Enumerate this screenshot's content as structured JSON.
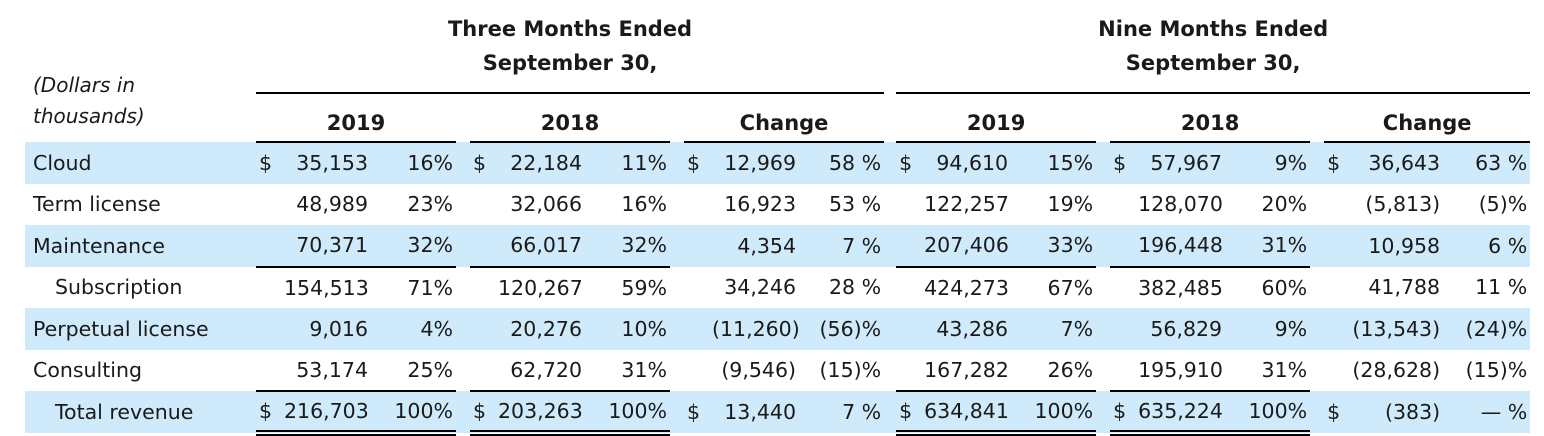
{
  "header": {
    "units_note": "(Dollars in thousands)",
    "groups": [
      {
        "title": "Three Months Ended September 30,",
        "columns": [
          "2019",
          "2018",
          "Change"
        ]
      },
      {
        "title": "Nine Months Ended September 30,",
        "columns": [
          "2019",
          "2018",
          "Change"
        ]
      }
    ]
  },
  "rows": [
    {
      "label": "Cloud",
      "indent": false,
      "shade": true,
      "rule": "none",
      "cells": [
        {
          "dollar": "$",
          "amount": "35,153",
          "pct": "16%"
        },
        {
          "dollar": "$",
          "amount": "22,184",
          "pct": "11%"
        },
        {
          "dollar": "$",
          "amount": "12,969",
          "pct": "58 %"
        },
        {
          "dollar": "$",
          "amount": "94,610",
          "pct": "15%"
        },
        {
          "dollar": "$",
          "amount": "57,967",
          "pct": "9%"
        },
        {
          "dollar": "$",
          "amount": "36,643",
          "pct": "63 %"
        }
      ]
    },
    {
      "label": "Term license",
      "indent": false,
      "shade": false,
      "rule": "none",
      "cells": [
        {
          "amount": "48,989",
          "pct": "23%"
        },
        {
          "amount": "32,066",
          "pct": "16%"
        },
        {
          "amount": "16,923",
          "pct": "53 %"
        },
        {
          "amount": "122,257",
          "pct": "19%"
        },
        {
          "amount": "128,070",
          "pct": "20%"
        },
        {
          "amount": "(5,813)",
          "pct": "(5)%"
        }
      ]
    },
    {
      "label": "Maintenance",
      "indent": false,
      "shade": true,
      "rule": "single",
      "cells": [
        {
          "amount": "70,371",
          "pct": "32%"
        },
        {
          "amount": "66,017",
          "pct": "32%"
        },
        {
          "amount": "4,354",
          "pct": "7 %"
        },
        {
          "amount": "207,406",
          "pct": "33%"
        },
        {
          "amount": "196,448",
          "pct": "31%"
        },
        {
          "amount": "10,958",
          "pct": "6 %"
        }
      ]
    },
    {
      "label": "Subscription",
      "indent": true,
      "shade": false,
      "rule": "none",
      "cells": [
        {
          "amount": "154,513",
          "pct": "71%"
        },
        {
          "amount": "120,267",
          "pct": "59%"
        },
        {
          "amount": "34,246",
          "pct": "28 %"
        },
        {
          "amount": "424,273",
          "pct": "67%"
        },
        {
          "amount": "382,485",
          "pct": "60%"
        },
        {
          "amount": "41,788",
          "pct": "11 %"
        }
      ]
    },
    {
      "label": "Perpetual license",
      "indent": false,
      "shade": true,
      "rule": "none",
      "cells": [
        {
          "amount": "9,016",
          "pct": "4%"
        },
        {
          "amount": "20,276",
          "pct": "10%"
        },
        {
          "amount": "(11,260)",
          "pct": "(56)%"
        },
        {
          "amount": "43,286",
          "pct": "7%"
        },
        {
          "amount": "56,829",
          "pct": "9%"
        },
        {
          "amount": "(13,543)",
          "pct": "(24)%"
        }
      ]
    },
    {
      "label": "Consulting",
      "indent": false,
      "shade": false,
      "rule": "single",
      "cells": [
        {
          "amount": "53,174",
          "pct": "25%"
        },
        {
          "amount": "62,720",
          "pct": "31%"
        },
        {
          "amount": "(9,546)",
          "pct": "(15)%"
        },
        {
          "amount": "167,282",
          "pct": "26%"
        },
        {
          "amount": "195,910",
          "pct": "31%"
        },
        {
          "amount": "(28,628)",
          "pct": "(15)%"
        }
      ]
    },
    {
      "label": "Total revenue",
      "indent": true,
      "shade": true,
      "rule": "double",
      "cells": [
        {
          "dollar": "$",
          "amount": "216,703",
          "pct": "100%"
        },
        {
          "dollar": "$",
          "amount": "203,263",
          "pct": "100%"
        },
        {
          "dollar": "$",
          "amount": "13,440",
          "pct": "7 %"
        },
        {
          "dollar": "$",
          "amount": "634,841",
          "pct": "100%"
        },
        {
          "dollar": "$",
          "amount": "635,224",
          "pct": "100%"
        },
        {
          "dollar": "$",
          "amount": "(383)",
          "pct": "— %"
        }
      ]
    }
  ],
  "colors": {
    "row_shade": "#cfeafa",
    "text": "#1a1a1a",
    "rule": "#000000"
  }
}
